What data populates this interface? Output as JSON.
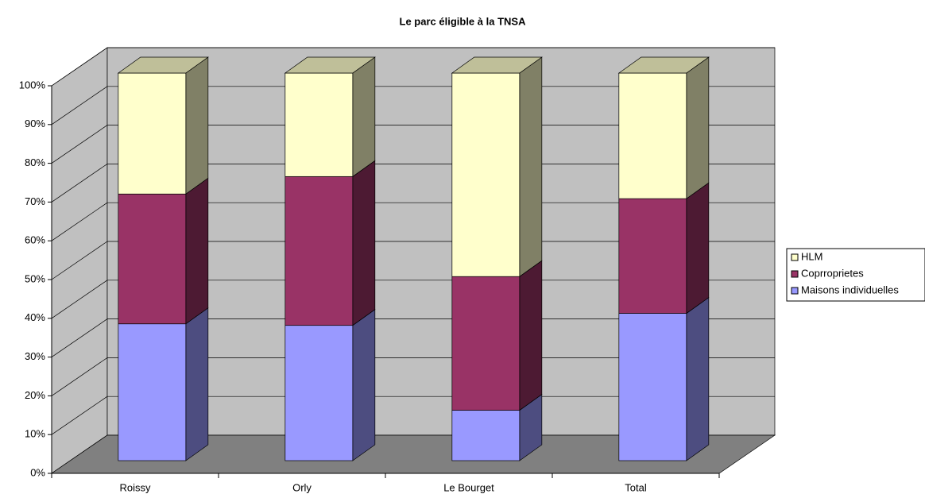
{
  "chart_data": {
    "type": "bar3d_stacked",
    "title": "Le parc éligible à la TNSA",
    "categories": [
      "Roissy",
      "Orly",
      "Le Bourget",
      "Total"
    ],
    "series": [
      {
        "name": "Maisons individuelles",
        "color": "#9999ff",
        "values": [
          35.3,
          34.9,
          13.0,
          38.0
        ]
      },
      {
        "name": "Coprroprietes",
        "color": "#993366",
        "values": [
          33.5,
          38.4,
          34.5,
          29.6
        ]
      },
      {
        "name": "HLM",
        "color": "#ffffcc",
        "values": [
          31.2,
          26.7,
          52.5,
          32.4
        ]
      }
    ],
    "ylim": [
      0,
      100
    ],
    "yticks": [
      {
        "value": 0,
        "label": "0%"
      },
      {
        "value": 10,
        "label": "10%"
      },
      {
        "value": 20,
        "label": "20%"
      },
      {
        "value": 30,
        "label": "30%"
      },
      {
        "value": 40,
        "label": "40%"
      },
      {
        "value": 50,
        "label": "50%"
      },
      {
        "value": 60,
        "label": "60%"
      },
      {
        "value": 70,
        "label": "70%"
      },
      {
        "value": 80,
        "label": "80%"
      },
      {
        "value": 90,
        "label": "90%"
      },
      {
        "value": 100,
        "label": "100%"
      }
    ],
    "grid": true,
    "legend": "right"
  }
}
